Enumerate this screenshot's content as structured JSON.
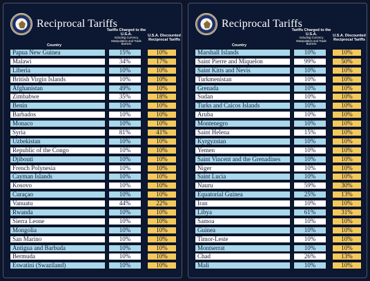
{
  "left_panel": {
    "title": "Reciprocal Tariffs",
    "header_country": "Country",
    "header_charged": "Tariffs Charged to the U.S.A.",
    "header_charged_sub": "Including Currency Manipulation and Trade Barriers",
    "header_discounted": "U.S.A. Discounted Reciprocal Tariffs",
    "rows": [
      {
        "country": "Papua New Guinea",
        "charged": "15%",
        "discounted": "10%",
        "highlight": true
      },
      {
        "country": "Malawi",
        "charged": "34%",
        "discounted": "17%",
        "highlight": false
      },
      {
        "country": "Liberia",
        "charged": "10%",
        "discounted": "10%",
        "highlight": true
      },
      {
        "country": "British Virgin Islands",
        "charged": "10%",
        "discounted": "10%",
        "highlight": false
      },
      {
        "country": "Afghanistan",
        "charged": "49%",
        "discounted": "10%",
        "highlight": true
      },
      {
        "country": "Zimbabwe",
        "charged": "35%",
        "discounted": "18%",
        "highlight": false
      },
      {
        "country": "Benin",
        "charged": "10%",
        "discounted": "10%",
        "highlight": true
      },
      {
        "country": "Barbados",
        "charged": "10%",
        "discounted": "10%",
        "highlight": false
      },
      {
        "country": "Monaco",
        "charged": "10%",
        "discounted": "10%",
        "highlight": true
      },
      {
        "country": "Syria",
        "charged": "81%",
        "discounted": "41%",
        "highlight": false
      },
      {
        "country": "Uzbekistan",
        "charged": "10%",
        "discounted": "10%",
        "highlight": true
      },
      {
        "country": "Republic of the Congo",
        "charged": "10%",
        "discounted": "10%",
        "highlight": false
      },
      {
        "country": "Djibouti",
        "charged": "10%",
        "discounted": "10%",
        "highlight": true
      },
      {
        "country": "French Polynesia",
        "charged": "10%",
        "discounted": "10%",
        "highlight": false
      },
      {
        "country": "Cayman Islands",
        "charged": "10%",
        "discounted": "10%",
        "highlight": true
      },
      {
        "country": "Kosovo",
        "charged": "10%",
        "discounted": "10%",
        "highlight": false
      },
      {
        "country": "Curaçao",
        "charged": "10%",
        "discounted": "10%",
        "highlight": true
      },
      {
        "country": "Vanuatu",
        "charged": "44%",
        "discounted": "22%",
        "highlight": false
      },
      {
        "country": "Rwanda",
        "charged": "10%",
        "discounted": "10%",
        "highlight": true
      },
      {
        "country": "Sierra Leone",
        "charged": "10%",
        "discounted": "10%",
        "highlight": false
      },
      {
        "country": "Mongolia",
        "charged": "10%",
        "discounted": "10%",
        "highlight": true
      },
      {
        "country": "San Marino",
        "charged": "10%",
        "discounted": "10%",
        "highlight": false
      },
      {
        "country": "Antigua and Barbuda",
        "charged": "10%",
        "discounted": "10%",
        "highlight": true
      },
      {
        "country": "Bermuda",
        "charged": "10%",
        "discounted": "10%",
        "highlight": false
      },
      {
        "country": "Eswatini (Swaziland)",
        "charged": "10%",
        "discounted": "10%",
        "highlight": true
      }
    ]
  },
  "right_panel": {
    "title": "Reciprocal Tariffs",
    "header_country": "Country",
    "header_charged": "Tariffs Charged to the U.S.A.",
    "header_charged_sub": "Including Currency Manipulation and Trade Barriers",
    "header_discounted": "U.S.A. Discounted Reciprocal Tariffs",
    "rows": [
      {
        "country": "Marshall Islands",
        "charged": "10%",
        "discounted": "10%",
        "highlight": true
      },
      {
        "country": "Saint Pierre and Miquelon",
        "charged": "99%",
        "discounted": "50%",
        "highlight": false
      },
      {
        "country": "Saint Kitts and Nevis",
        "charged": "10%",
        "discounted": "10%",
        "highlight": true
      },
      {
        "country": "Turkmenistan",
        "charged": "10%",
        "discounted": "10%",
        "highlight": false
      },
      {
        "country": "Grenada",
        "charged": "10%",
        "discounted": "10%",
        "highlight": true
      },
      {
        "country": "Sudan",
        "charged": "10%",
        "discounted": "10%",
        "highlight": false
      },
      {
        "country": "Turks and Caicos Islands",
        "charged": "10%",
        "discounted": "10%",
        "highlight": true
      },
      {
        "country": "Aruba",
        "charged": "10%",
        "discounted": "10%",
        "highlight": false
      },
      {
        "country": "Montenegro",
        "charged": "10%",
        "discounted": "10%",
        "highlight": true
      },
      {
        "country": "Saint Helena",
        "charged": "15%",
        "discounted": "10%",
        "highlight": false
      },
      {
        "country": "Kyrgyzstan",
        "charged": "10%",
        "discounted": "10%",
        "highlight": true
      },
      {
        "country": "Yemen",
        "charged": "10%",
        "discounted": "10%",
        "highlight": false
      },
      {
        "country": "Saint Vincent and the Grenadines",
        "charged": "10%",
        "discounted": "10%",
        "highlight": true
      },
      {
        "country": "Niger",
        "charged": "10%",
        "discounted": "10%",
        "highlight": false
      },
      {
        "country": "Saint Lucia",
        "charged": "10%",
        "discounted": "10%",
        "highlight": true
      },
      {
        "country": "Nauru",
        "charged": "59%",
        "discounted": "30%",
        "highlight": false
      },
      {
        "country": "Equatorial Guinea",
        "charged": "25%",
        "discounted": "13%",
        "highlight": true
      },
      {
        "country": "Iran",
        "charged": "10%",
        "discounted": "10%",
        "highlight": false
      },
      {
        "country": "Libya",
        "charged": "61%",
        "discounted": "31%",
        "highlight": true
      },
      {
        "country": "Samoa",
        "charged": "10%",
        "discounted": "10%",
        "highlight": false
      },
      {
        "country": "Guinea",
        "charged": "10%",
        "discounted": "10%",
        "highlight": true
      },
      {
        "country": "Timor-Leste",
        "charged": "10%",
        "discounted": "10%",
        "highlight": false
      },
      {
        "country": "Montserrat",
        "charged": "10%",
        "discounted": "10%",
        "highlight": true
      },
      {
        "country": "Chad",
        "charged": "26%",
        "discounted": "13%",
        "highlight": false
      },
      {
        "country": "Mali",
        "charged": "10%",
        "discounted": "10%",
        "highlight": true
      }
    ]
  },
  "colors": {
    "background": "#0c1731",
    "highlight_row": "#a9d8ea",
    "plain_row": "#ffffff",
    "discount_cell": "#f4c95c"
  }
}
